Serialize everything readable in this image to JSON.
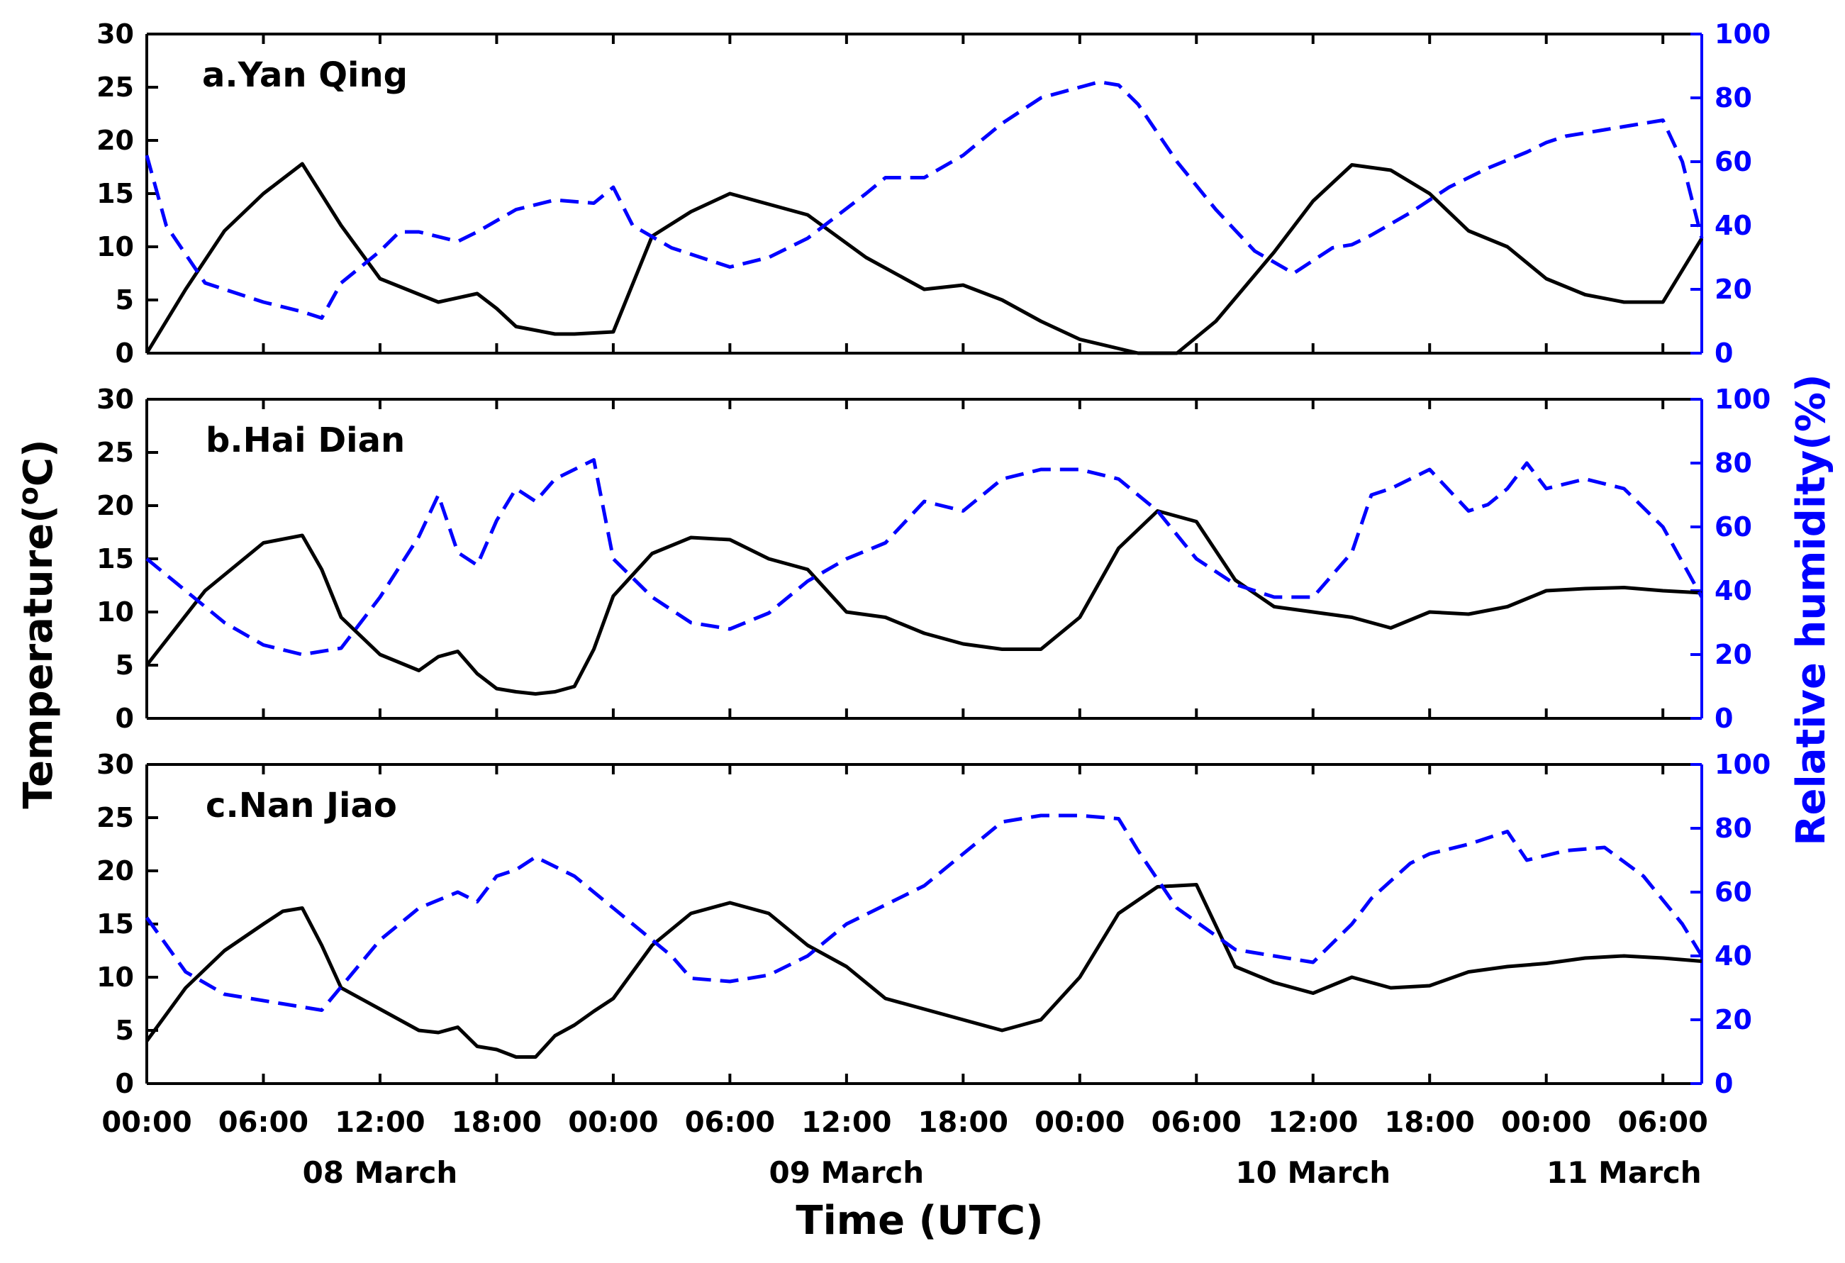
{
  "chart_data": {
    "type": "line",
    "xlabel": "Time (UTC)",
    "ylabel_left": "Temperature(°C)",
    "ylabel_left_main": "Temperature(",
    "ylabel_left_sup": "o",
    "ylabel_left_end": "C)",
    "ylabel_right": "Relative humidity(%)",
    "x_unit": "hours since 08 March 00:00 UTC",
    "xlim": [
      0,
      80
    ],
    "x_tick_labels": [
      "00:00",
      "06:00",
      "12:00",
      "18:00",
      "00:00",
      "06:00",
      "12:00",
      "18:00",
      "00:00",
      "06:00",
      "12:00",
      "18:00",
      "00:00",
      "06:00"
    ],
    "date_labels": [
      "08 March",
      "09 March",
      "10 March",
      "11 March"
    ],
    "ylim_left": [
      0,
      30
    ],
    "y_ticks_left": [
      "0",
      "5",
      "10",
      "15",
      "20",
      "25",
      "30"
    ],
    "ylim_right": [
      0,
      100
    ],
    "y_ticks_right": [
      "0",
      "20",
      "40",
      "60",
      "80",
      "100"
    ],
    "colors": {
      "temperature": "#000000",
      "humidity": "#0000ff",
      "right_axis": "#0000ff"
    },
    "panels": [
      {
        "title": "a.Yan Qing",
        "series": [
          {
            "name": "Temperature",
            "axis": "left",
            "style": "solid",
            "x": [
              0,
              2,
              4,
              6,
              8,
              10,
              12,
              15,
              17,
              18,
              19,
              21,
              22,
              24,
              26,
              28,
              30,
              32,
              34,
              37,
              39,
              40,
              42,
              44,
              46,
              48,
              51,
              53,
              55,
              58,
              60,
              62,
              64,
              66,
              68,
              70,
              72,
              74,
              76,
              78,
              80
            ],
            "values": [
              0,
              6,
              11.5,
              15,
              17.8,
              12,
              7,
              4.8,
              5.6,
              4.2,
              2.5,
              1.8,
              1.8,
              2,
              11,
              13.3,
              15,
              14,
              13,
              9,
              7,
              6,
              6.4,
              5,
              3,
              1.3,
              0,
              0,
              3,
              9.5,
              14.3,
              17.7,
              17.2,
              15,
              11.5,
              10,
              7,
              5.5,
              4.8,
              4.8,
              10.8
            ]
          },
          {
            "name": "Relative humidity",
            "axis": "right",
            "style": "dashed",
            "x": [
              0,
              1,
              3,
              6,
              8,
              9,
              10,
              12,
              13,
              14,
              16,
              17,
              19,
              21,
              23,
              24,
              25,
              27,
              30,
              32,
              34,
              37,
              38,
              40,
              42,
              44,
              46,
              49,
              50,
              51,
              53,
              55,
              57,
              59,
              61,
              62,
              63,
              65,
              67,
              69,
              71,
              72,
              73,
              75,
              77,
              78,
              79,
              80
            ],
            "values": [
              62,
              40,
              22,
              16,
              13,
              11,
              22,
              32,
              38,
              38,
              35,
              38,
              45,
              48,
              47,
              52,
              40,
              33,
              27,
              30,
              36,
              50,
              55,
              55,
              62,
              72,
              80,
              85,
              84,
              78,
              60,
              45,
              32,
              25,
              33,
              34,
              37,
              44,
              52,
              58,
              63,
              66,
              68,
              70,
              72,
              73,
              60,
              36
            ]
          }
        ]
      },
      {
        "title": "b.Hai Dian",
        "series": [
          {
            "name": "Temperature",
            "axis": "left",
            "style": "solid",
            "x": [
              0,
              3,
              6,
              8,
              9,
              10,
              12,
              14,
              15,
              16,
              17,
              18,
              19,
              20,
              21,
              22,
              23,
              24,
              26,
              28,
              30,
              32,
              34,
              36,
              38,
              40,
              42,
              44,
              46,
              48,
              50,
              52,
              54,
              56,
              58,
              60,
              62,
              64,
              66,
              68,
              70,
              72,
              74,
              76,
              78,
              80
            ],
            "values": [
              5,
              12,
              16.5,
              17.2,
              14,
              9.5,
              6,
              4.5,
              5.8,
              6.3,
              4.2,
              2.8,
              2.5,
              2.3,
              2.5,
              3,
              6.5,
              11.5,
              15.5,
              17,
              16.8,
              15,
              14,
              10,
              9.5,
              8,
              7,
              6.5,
              6.5,
              9.5,
              16,
              19.5,
              18.5,
              13,
              10.5,
              10,
              9.5,
              8.5,
              10,
              9.8,
              10.5,
              12,
              12.2,
              12.3,
              12,
              11.8
            ]
          },
          {
            "name": "Relative humidity",
            "axis": "right",
            "style": "dashed",
            "x": [
              0,
              2,
              4,
              6,
              8,
              10,
              12,
              14,
              15,
              16,
              17,
              18,
              19,
              20,
              21,
              22,
              23,
              24,
              26,
              28,
              30,
              32,
              34,
              36,
              38,
              40,
              42,
              44,
              46,
              48,
              50,
              52,
              54,
              56,
              58,
              60,
              62,
              63,
              64,
              66,
              68,
              69,
              70,
              71,
              72,
              74,
              76,
              78,
              80
            ],
            "values": [
              50,
              40,
              30,
              23,
              20,
              22,
              38,
              57,
              70,
              52,
              48,
              62,
              72,
              68,
              75,
              78,
              81,
              50,
              38,
              30,
              28,
              33,
              43,
              50,
              55,
              68,
              65,
              75,
              78,
              78,
              75,
              65,
              50,
              42,
              38,
              38,
              52,
              70,
              72,
              78,
              65,
              67,
              72,
              80,
              72,
              75,
              72,
              60,
              38
            ]
          }
        ]
      },
      {
        "title": "c.Nan Jiao",
        "series": [
          {
            "name": "Temperature",
            "axis": "left",
            "style": "solid",
            "x": [
              0,
              2,
              4,
              6,
              7,
              8,
              9,
              10,
              12,
              14,
              15,
              16,
              17,
              18,
              19,
              20,
              21,
              22,
              23,
              24,
              26,
              28,
              30,
              32,
              34,
              36,
              38,
              40,
              42,
              44,
              46,
              48,
              50,
              52,
              54,
              56,
              58,
              60,
              62,
              64,
              66,
              68,
              70,
              72,
              74,
              76,
              78,
              80
            ],
            "values": [
              4,
              9,
              12.5,
              15,
              16.2,
              16.5,
              13,
              9,
              7,
              5,
              4.8,
              5.3,
              3.5,
              3.2,
              2.5,
              2.5,
              4.5,
              5.5,
              6.8,
              8,
              13,
              16,
              17,
              16,
              13,
              11,
              8,
              7,
              6,
              5,
              6,
              10,
              16,
              18.5,
              18.7,
              11,
              9.5,
              8.5,
              10,
              9,
              9.2,
              10.5,
              11,
              11.3,
              11.8,
              12,
              11.8,
              11.5
            ]
          },
          {
            "name": "Relative humidity",
            "axis": "right",
            "style": "dashed",
            "x": [
              0,
              2,
              4,
              7,
              9,
              12,
              14,
              16,
              17,
              18,
              19,
              20,
              22,
              24,
              26,
              27,
              28,
              30,
              32,
              34,
              36,
              38,
              40,
              42,
              44,
              46,
              48,
              50,
              51,
              53,
              56,
              58,
              60,
              62,
              63,
              65,
              66,
              68,
              70,
              71,
              73,
              75,
              77,
              79,
              80
            ],
            "values": [
              52,
              35,
              28,
              25,
              23,
              45,
              55,
              60,
              57,
              65,
              67,
              71,
              65,
              55,
              45,
              40,
              33,
              32,
              34,
              40,
              50,
              56,
              62,
              72,
              82,
              84,
              84,
              83,
              73,
              55,
              42,
              40,
              38,
              50,
              58,
              69,
              72,
              75,
              79,
              70,
              73,
              74,
              65,
              50,
              40
            ]
          }
        ]
      }
    ]
  }
}
